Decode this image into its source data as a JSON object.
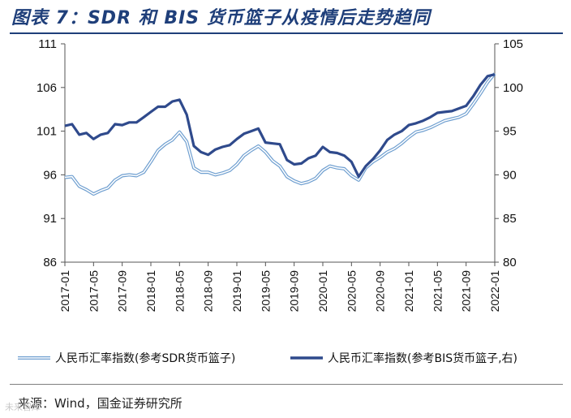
{
  "title": "图表 7：SDR 和 BIS 货币篮子从疫情后走势趋同",
  "source": "来源：Wind，国金证券研究所",
  "watermark": "未来智库",
  "colors": {
    "sdr": "#6f9fd0",
    "bis": "#2f4a8c",
    "title": "#1f3f7a"
  },
  "chart_data": {
    "type": "line",
    "title": "",
    "xlabel": "",
    "ylabel": "",
    "x_ticks": [
      "2017-01",
      "2017-05",
      "2017-09",
      "2018-01",
      "2018-05",
      "2018-09",
      "2019-01",
      "2019-05",
      "2019-09",
      "2020-01",
      "2020-05",
      "2020-09",
      "2021-01",
      "2021-05",
      "2021-09",
      "2022-01"
    ],
    "y_left": {
      "range": [
        86,
        111
      ],
      "ticks": [
        86,
        91,
        96,
        101,
        106,
        111
      ]
    },
    "y_right": {
      "range": [
        80,
        105
      ],
      "ticks": [
        80,
        85,
        90,
        95,
        100,
        105
      ]
    },
    "legend_position": "bottom",
    "series": [
      {
        "name": "人民币汇率指数(参考SDR货币篮子)",
        "axis": "left",
        "style": "outlined-light",
        "points": [
          [
            "2017-01",
            95.7
          ],
          [
            "2017-02",
            95.8
          ],
          [
            "2017-03",
            94.7
          ],
          [
            "2017-04",
            94.3
          ],
          [
            "2017-05",
            93.8
          ],
          [
            "2017-06",
            94.2
          ],
          [
            "2017-07",
            94.5
          ],
          [
            "2017-08",
            95.4
          ],
          [
            "2017-09",
            95.9
          ],
          [
            "2017-10",
            96.0
          ],
          [
            "2017-11",
            95.9
          ],
          [
            "2017-12",
            96.3
          ],
          [
            "2018-01",
            97.5
          ],
          [
            "2018-02",
            98.8
          ],
          [
            "2018-03",
            99.5
          ],
          [
            "2018-04",
            100.0
          ],
          [
            "2018-05",
            100.9
          ],
          [
            "2018-06",
            99.8
          ],
          [
            "2018-07",
            96.8
          ],
          [
            "2018-08",
            96.3
          ],
          [
            "2018-09",
            96.3
          ],
          [
            "2018-10",
            96.0
          ],
          [
            "2018-11",
            96.2
          ],
          [
            "2018-12",
            96.5
          ],
          [
            "2019-01",
            97.2
          ],
          [
            "2019-02",
            98.2
          ],
          [
            "2019-03",
            98.8
          ],
          [
            "2019-04",
            99.3
          ],
          [
            "2019-05",
            98.6
          ],
          [
            "2019-06",
            97.6
          ],
          [
            "2019-07",
            97.0
          ],
          [
            "2019-08",
            95.8
          ],
          [
            "2019-09",
            95.3
          ],
          [
            "2019-10",
            95.0
          ],
          [
            "2019-11",
            95.2
          ],
          [
            "2019-12",
            95.6
          ],
          [
            "2020-01",
            96.5
          ],
          [
            "2020-02",
            97.0
          ],
          [
            "2020-03",
            96.8
          ],
          [
            "2020-04",
            96.7
          ],
          [
            "2020-05",
            95.9
          ],
          [
            "2020-06",
            95.4
          ],
          [
            "2020-07",
            96.8
          ],
          [
            "2020-08",
            97.5
          ],
          [
            "2020-09",
            98.0
          ],
          [
            "2020-10",
            98.6
          ],
          [
            "2020-11",
            99.0
          ],
          [
            "2020-12",
            99.6
          ],
          [
            "2021-01",
            100.3
          ],
          [
            "2021-02",
            100.9
          ],
          [
            "2021-03",
            101.1
          ],
          [
            "2021-04",
            101.4
          ],
          [
            "2021-05",
            101.8
          ],
          [
            "2021-06",
            102.2
          ],
          [
            "2021-07",
            102.4
          ],
          [
            "2021-08",
            102.6
          ],
          [
            "2021-09",
            103.0
          ],
          [
            "2021-10",
            104.1
          ],
          [
            "2021-11",
            105.3
          ],
          [
            "2021-12",
            106.6
          ],
          [
            "2022-01",
            107.6
          ]
        ]
      },
      {
        "name": "人民币汇率指数(参考BIS货币篮子,右)",
        "axis": "right",
        "style": "solid-dark",
        "points": [
          [
            "2017-01",
            95.6
          ],
          [
            "2017-02",
            95.8
          ],
          [
            "2017-03",
            94.6
          ],
          [
            "2017-04",
            94.8
          ],
          [
            "2017-05",
            94.1
          ],
          [
            "2017-06",
            94.6
          ],
          [
            "2017-07",
            94.8
          ],
          [
            "2017-08",
            95.8
          ],
          [
            "2017-09",
            95.7
          ],
          [
            "2017-10",
            96.0
          ],
          [
            "2017-11",
            96.0
          ],
          [
            "2017-12",
            96.6
          ],
          [
            "2018-01",
            97.2
          ],
          [
            "2018-02",
            97.8
          ],
          [
            "2018-03",
            97.8
          ],
          [
            "2018-04",
            98.4
          ],
          [
            "2018-05",
            98.6
          ],
          [
            "2018-06",
            96.9
          ],
          [
            "2018-07",
            93.3
          ],
          [
            "2018-08",
            92.6
          ],
          [
            "2018-09",
            92.3
          ],
          [
            "2018-10",
            92.9
          ],
          [
            "2018-11",
            93.2
          ],
          [
            "2018-12",
            93.4
          ],
          [
            "2019-01",
            94.1
          ],
          [
            "2019-02",
            94.7
          ],
          [
            "2019-03",
            95.0
          ],
          [
            "2019-04",
            95.3
          ],
          [
            "2019-05",
            93.7
          ],
          [
            "2019-06",
            93.6
          ],
          [
            "2019-07",
            93.5
          ],
          [
            "2019-08",
            91.7
          ],
          [
            "2019-09",
            91.2
          ],
          [
            "2019-10",
            91.3
          ],
          [
            "2019-11",
            91.9
          ],
          [
            "2019-12",
            92.2
          ],
          [
            "2020-01",
            93.2
          ],
          [
            "2020-02",
            92.6
          ],
          [
            "2020-03",
            92.5
          ],
          [
            "2020-04",
            92.2
          ],
          [
            "2020-05",
            91.5
          ],
          [
            "2020-06",
            89.8
          ],
          [
            "2020-07",
            91.0
          ],
          [
            "2020-08",
            91.8
          ],
          [
            "2020-09",
            92.8
          ],
          [
            "2020-10",
            94.0
          ],
          [
            "2020-11",
            94.6
          ],
          [
            "2020-12",
            95.0
          ],
          [
            "2021-01",
            95.7
          ],
          [
            "2021-02",
            95.9
          ],
          [
            "2021-03",
            96.2
          ],
          [
            "2021-04",
            96.6
          ],
          [
            "2021-05",
            97.1
          ],
          [
            "2021-06",
            97.2
          ],
          [
            "2021-07",
            97.3
          ],
          [
            "2021-08",
            97.6
          ],
          [
            "2021-09",
            97.9
          ],
          [
            "2021-10",
            99.0
          ],
          [
            "2021-11",
            100.3
          ],
          [
            "2021-12",
            101.3
          ],
          [
            "2022-01",
            101.5
          ]
        ]
      }
    ]
  }
}
